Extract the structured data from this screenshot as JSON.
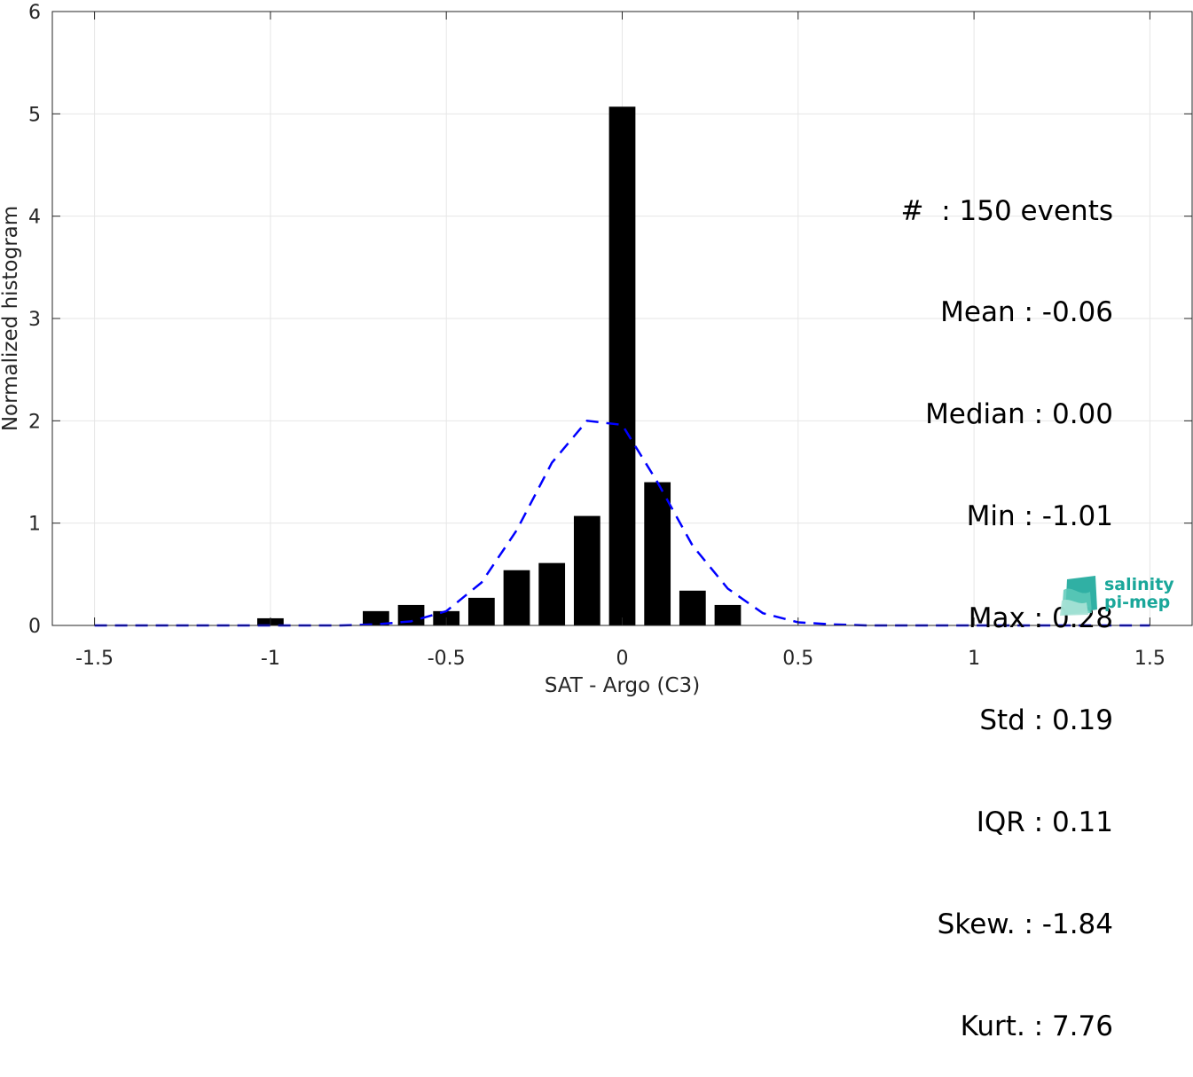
{
  "chart_data": {
    "type": "bar",
    "xlabel": "SAT - Argo (C3)",
    "ylabel": "Normalized histogram",
    "xlim": [
      -1.62,
      1.62
    ],
    "ylim": [
      0,
      6
    ],
    "xticks": [
      -1.5,
      -1,
      -0.5,
      0,
      0.5,
      1,
      1.5
    ],
    "xtick_labels": [
      "-1.5",
      "-1",
      "-0.5",
      "0",
      "0.5",
      "1",
      "1.5"
    ],
    "yticks": [
      0,
      1,
      2,
      3,
      4,
      5,
      6
    ],
    "ytick_labels": [
      "0",
      "1",
      "2",
      "3",
      "4",
      "5",
      "6"
    ],
    "grid": true,
    "bar_width": 0.075,
    "histogram": {
      "x": [
        -1.0,
        -0.7,
        -0.6,
        -0.5,
        -0.4,
        -0.3,
        -0.2,
        -0.1,
        0.0,
        0.1,
        0.2,
        0.3
      ],
      "values": [
        0.07,
        0.14,
        0.2,
        0.14,
        0.27,
        0.54,
        0.61,
        1.07,
        5.07,
        1.4,
        0.34,
        0.2
      ],
      "color": "#000000"
    },
    "fit_curve": {
      "style": "dashed",
      "color": "#0000ff",
      "x": [
        -1.5,
        -1.4,
        -1.3,
        -1.2,
        -1.1,
        -1.0,
        -0.9,
        -0.8,
        -0.7,
        -0.6,
        -0.5,
        -0.4,
        -0.3,
        -0.2,
        -0.1,
        0.0,
        0.1,
        0.2,
        0.3,
        0.4,
        0.5,
        0.6,
        0.7,
        0.8,
        0.9,
        1.0,
        1.1,
        1.2,
        1.3,
        1.4,
        1.5
      ],
      "y": [
        0.0,
        0.0,
        0.0,
        0.0,
        0.0,
        0.0,
        0.0,
        0.0,
        0.01,
        0.04,
        0.14,
        0.42,
        0.93,
        1.59,
        2.0,
        1.96,
        1.4,
        0.78,
        0.36,
        0.12,
        0.03,
        0.01,
        0.0,
        0.0,
        0.0,
        0.0,
        0.0,
        0.0,
        0.0,
        0.0,
        0.0
      ]
    },
    "annotations": [
      "#  : 150 events",
      "Mean : -0.06",
      "Median : 0.00",
      "Min : -1.01",
      "Max : 0.28",
      "Std : 0.19",
      "IQR : 0.11",
      "Skew. : -1.84",
      "Kurt. : 7.76"
    ]
  },
  "logo": {
    "line1": "salinity",
    "line2": "pi-mep",
    "color": "#1aa79a"
  }
}
